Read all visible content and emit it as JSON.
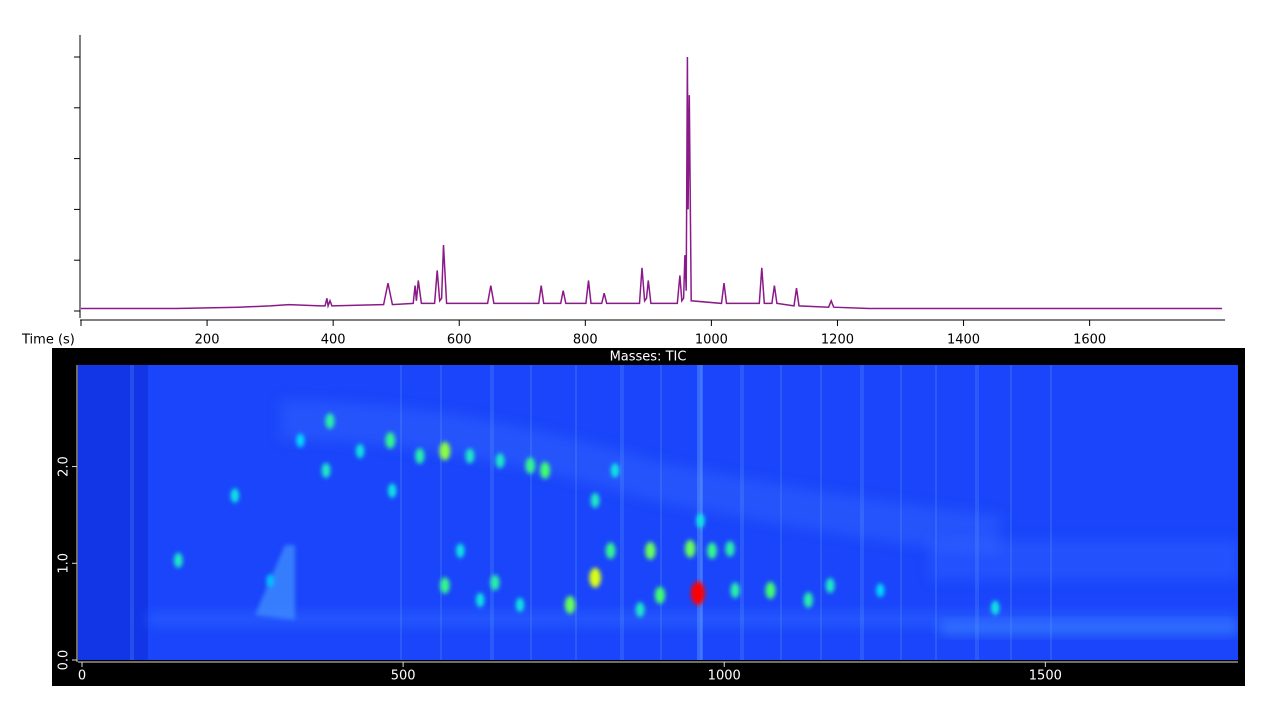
{
  "chart_data": [
    {
      "type": "line",
      "x_label": "Time (s)",
      "x": [
        0,
        150,
        250,
        300,
        330,
        380,
        387,
        390,
        392,
        395,
        398,
        480,
        487,
        494,
        527,
        530,
        532,
        535,
        540,
        561,
        565,
        569,
        572,
        575,
        580,
        645,
        650,
        655,
        726,
        730,
        734,
        761,
        765,
        769,
        801,
        805,
        809,
        826,
        830,
        834,
        886,
        890,
        894,
        897,
        900,
        904,
        946,
        950,
        953,
        956,
        958,
        960,
        962,
        963,
        965,
        968,
        1016,
        1020,
        1024,
        1076,
        1080,
        1084,
        1096,
        1100,
        1104,
        1131,
        1135,
        1139,
        1186,
        1190,
        1194,
        1250,
        1810
      ],
      "values": [
        1,
        1,
        1.5,
        2,
        2.5,
        2,
        2,
        5,
        2,
        4,
        2,
        2.5,
        11,
        2.5,
        3,
        10,
        4,
        12,
        3,
        3,
        16,
        4,
        5,
        26,
        3,
        3,
        10,
        3,
        3,
        10,
        3,
        3,
        8,
        3,
        3,
        12,
        3,
        3,
        7,
        3,
        3,
        17,
        4,
        5,
        12,
        3,
        3,
        14,
        4,
        5,
        22,
        8,
        100,
        40,
        85,
        4,
        3,
        11,
        3,
        3,
        17,
        3,
        3,
        10,
        3,
        2,
        9,
        2,
        1.5,
        4,
        1.5,
        1,
        1
      ],
      "color": "#8b1a89",
      "xlim": [
        0,
        1810
      ],
      "xticks": [
        200,
        400,
        600,
        800,
        1000,
        1200,
        1400,
        1600
      ],
      "ylim": [
        0,
        100
      ],
      "yticks": [
        0,
        20,
        40,
        60,
        80,
        100
      ]
    },
    {
      "type": "heatmap",
      "title": "Masses:  TIC",
      "x": [
        386,
        380,
        480,
        526,
        565,
        698,
        721,
        799,
        483,
        238,
        150,
        823,
        885,
        947,
        981,
        1009,
        799,
        565,
        643,
        760,
        900,
        959,
        1017,
        1072,
        1131,
        1165,
        1422,
        620,
        682,
        869,
        1243,
        589,
        340,
        433,
        604,
        651,
        830,
        963,
        293
      ],
      "y": [
        2.47,
        1.96,
        2.27,
        2.11,
        2.16,
        2.01,
        1.96,
        1.65,
        1.75,
        1.7,
        1.03,
        1.13,
        1.13,
        1.15,
        1.13,
        1.15,
        0.85,
        0.77,
        0.8,
        0.57,
        0.67,
        0.69,
        0.72,
        0.72,
        0.62,
        0.77,
        0.54,
        0.62,
        0.57,
        0.52,
        0.72,
        1.13,
        2.27,
        2.16,
        2.11,
        2.06,
        1.96,
        1.44,
        0.82
      ],
      "values": [
        40,
        35,
        45,
        40,
        60,
        45,
        50,
        35,
        30,
        30,
        35,
        45,
        55,
        55,
        45,
        40,
        70,
        45,
        40,
        55,
        50,
        100,
        40,
        50,
        40,
        35,
        30,
        30,
        30,
        35,
        25,
        30,
        25,
        30,
        35,
        35,
        30,
        30,
        20
      ],
      "vlim": [
        0,
        100
      ],
      "colorscale": [
        "#1f55ff",
        "#00e0ff",
        "#40ff70",
        "#ffff00",
        "#ff0000"
      ],
      "xlim": [
        0,
        1800
      ],
      "xticks": [
        0,
        500,
        1000,
        1500
      ],
      "ylim": [
        0,
        3.05
      ],
      "yticks": [
        {
          "value": 0,
          "label": "0.0"
        },
        {
          "value": 1,
          "label": "1.0"
        },
        {
          "value": 2,
          "label": "2.0"
        }
      ]
    }
  ]
}
